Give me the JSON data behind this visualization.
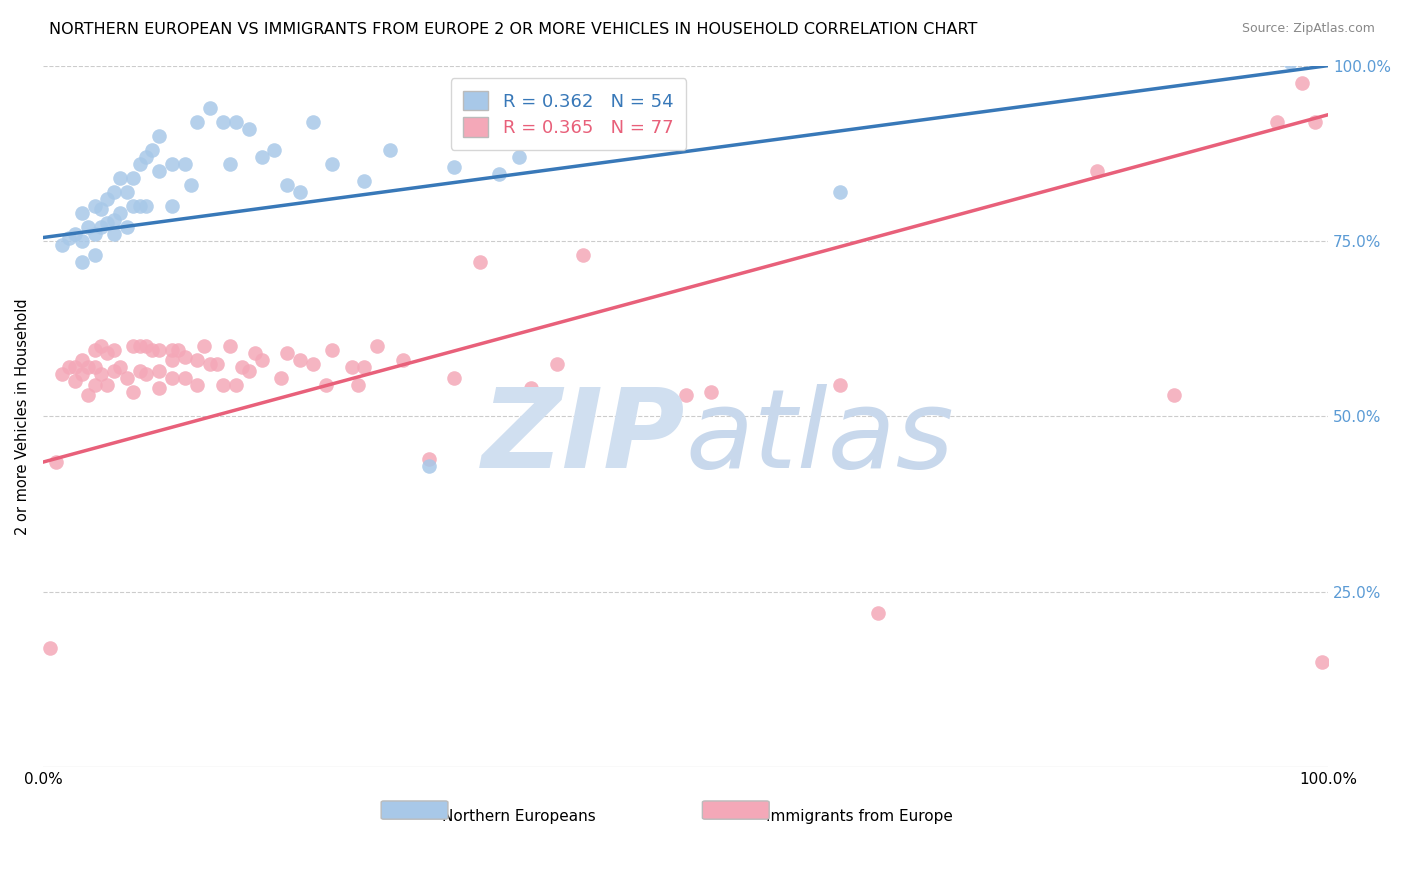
{
  "title": "NORTHERN EUROPEAN VS IMMIGRANTS FROM EUROPE 2 OR MORE VEHICLES IN HOUSEHOLD CORRELATION CHART",
  "source": "Source: ZipAtlas.com",
  "ylabel": "2 or more Vehicles in Household",
  "xmin": 0.0,
  "xmax": 1.0,
  "ymin": 0.0,
  "ymax": 1.0,
  "blue_R": 0.362,
  "blue_N": 54,
  "pink_R": 0.365,
  "pink_N": 77,
  "blue_line_start_x": 0.0,
  "blue_line_start_y": 0.755,
  "blue_line_end_x": 1.0,
  "blue_line_end_y": 1.0,
  "pink_line_start_x": 0.0,
  "pink_line_start_y": 0.435,
  "pink_line_end_x": 1.0,
  "pink_line_end_y": 0.93,
  "blue_scatter_x": [
    0.015,
    0.02,
    0.025,
    0.03,
    0.03,
    0.03,
    0.035,
    0.04,
    0.04,
    0.04,
    0.045,
    0.045,
    0.05,
    0.05,
    0.055,
    0.055,
    0.055,
    0.06,
    0.06,
    0.065,
    0.065,
    0.07,
    0.07,
    0.075,
    0.075,
    0.08,
    0.08,
    0.085,
    0.09,
    0.09,
    0.1,
    0.1,
    0.11,
    0.115,
    0.12,
    0.13,
    0.14,
    0.145,
    0.15,
    0.16,
    0.17,
    0.18,
    0.19,
    0.2,
    0.21,
    0.225,
    0.25,
    0.27,
    0.3,
    0.32,
    0.355,
    0.37,
    0.62,
    0.97
  ],
  "blue_scatter_y": [
    0.745,
    0.755,
    0.76,
    0.75,
    0.72,
    0.79,
    0.77,
    0.8,
    0.76,
    0.73,
    0.795,
    0.77,
    0.775,
    0.81,
    0.78,
    0.82,
    0.76,
    0.79,
    0.84,
    0.82,
    0.77,
    0.84,
    0.8,
    0.86,
    0.8,
    0.87,
    0.8,
    0.88,
    0.9,
    0.85,
    0.86,
    0.8,
    0.86,
    0.83,
    0.92,
    0.94,
    0.92,
    0.86,
    0.92,
    0.91,
    0.87,
    0.88,
    0.83,
    0.82,
    0.92,
    0.86,
    0.835,
    0.88,
    0.43,
    0.855,
    0.845,
    0.87,
    0.82,
    1.005
  ],
  "pink_scatter_x": [
    0.005,
    0.01,
    0.015,
    0.02,
    0.025,
    0.025,
    0.03,
    0.03,
    0.035,
    0.035,
    0.04,
    0.04,
    0.04,
    0.045,
    0.045,
    0.05,
    0.05,
    0.055,
    0.055,
    0.06,
    0.065,
    0.07,
    0.07,
    0.075,
    0.075,
    0.08,
    0.08,
    0.085,
    0.09,
    0.09,
    0.09,
    0.1,
    0.1,
    0.1,
    0.105,
    0.11,
    0.11,
    0.12,
    0.12,
    0.125,
    0.13,
    0.135,
    0.14,
    0.145,
    0.15,
    0.155,
    0.16,
    0.165,
    0.17,
    0.185,
    0.19,
    0.2,
    0.21,
    0.22,
    0.225,
    0.24,
    0.245,
    0.25,
    0.26,
    0.28,
    0.3,
    0.32,
    0.34,
    0.36,
    0.38,
    0.4,
    0.42,
    0.5,
    0.52,
    0.62,
    0.65,
    0.82,
    0.88,
    0.96,
    0.98,
    0.99,
    0.995
  ],
  "pink_scatter_y": [
    0.17,
    0.435,
    0.56,
    0.57,
    0.55,
    0.57,
    0.56,
    0.58,
    0.57,
    0.53,
    0.595,
    0.57,
    0.545,
    0.6,
    0.56,
    0.59,
    0.545,
    0.595,
    0.565,
    0.57,
    0.555,
    0.6,
    0.535,
    0.6,
    0.565,
    0.6,
    0.56,
    0.595,
    0.595,
    0.565,
    0.54,
    0.58,
    0.555,
    0.595,
    0.595,
    0.585,
    0.555,
    0.58,
    0.545,
    0.6,
    0.575,
    0.575,
    0.545,
    0.6,
    0.545,
    0.57,
    0.565,
    0.59,
    0.58,
    0.555,
    0.59,
    0.58,
    0.575,
    0.545,
    0.595,
    0.57,
    0.545,
    0.57,
    0.6,
    0.58,
    0.44,
    0.555,
    0.72,
    0.53,
    0.54,
    0.575,
    0.73,
    0.53,
    0.535,
    0.545,
    0.22,
    0.85,
    0.53,
    0.92,
    0.975,
    0.92,
    0.15
  ],
  "background_color": "#ffffff",
  "blue_dot_color": "#a8c8e8",
  "pink_dot_color": "#f4a8b8",
  "blue_line_color": "#3878b8",
  "pink_line_color": "#e8607a",
  "grid_color": "#cccccc",
  "right_tick_color": "#5b9bd5",
  "watermark_zip_color": "#d0dff0",
  "watermark_atlas_color": "#c8d8ec"
}
